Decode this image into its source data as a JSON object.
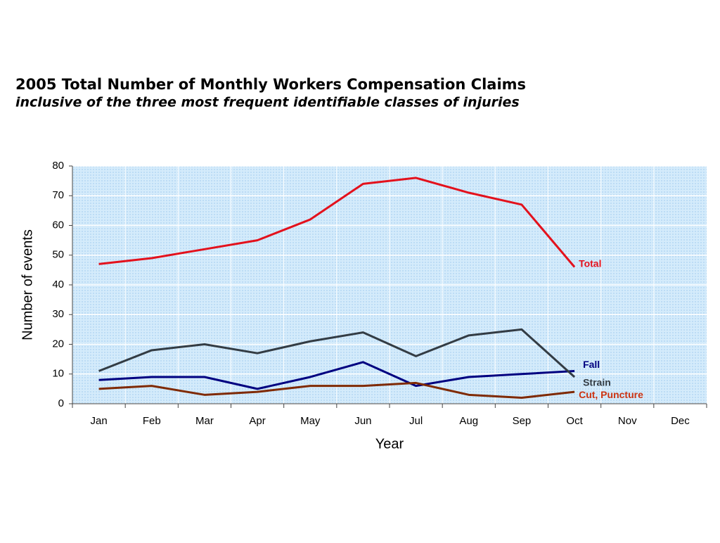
{
  "chart_data": {
    "type": "line",
    "title": "2005 Total Number of Monthly Workers Compensation Claims",
    "subtitle": "inclusive of the three most frequent identifiable classes of injuries",
    "x_label": "Year",
    "y_label": "Number of events",
    "categories": [
      "Jan",
      "Feb",
      "Mar",
      "Apr",
      "May",
      "Jun",
      "Jul",
      "Aug",
      "Sep",
      "Oct",
      "Nov",
      "Dec"
    ],
    "series": [
      {
        "name": "Total",
        "color": "#e3111c",
        "values": [
          47,
          49,
          52,
          55,
          62,
          74,
          76,
          71,
          67,
          46,
          null,
          null
        ]
      },
      {
        "name": "Fall",
        "color": "#000080",
        "values": [
          8,
          9,
          9,
          5,
          9,
          14,
          6,
          9,
          10,
          11,
          null,
          null
        ]
      },
      {
        "name": "Strain",
        "color": "#333c44",
        "values": [
          11,
          18,
          20,
          17,
          21,
          24,
          16,
          23,
          25,
          9,
          null,
          null
        ]
      },
      {
        "name": "Cut, Puncture",
        "color": "#7f2a04",
        "label_color": "#cc3311",
        "values": [
          5,
          6,
          3,
          4,
          6,
          6,
          7,
          3,
          2,
          4,
          null,
          null
        ]
      }
    ],
    "ylim": [
      0,
      80
    ],
    "yticks": [
      0,
      10,
      20,
      30,
      40,
      50,
      60,
      70,
      80
    ],
    "grid": true
  }
}
